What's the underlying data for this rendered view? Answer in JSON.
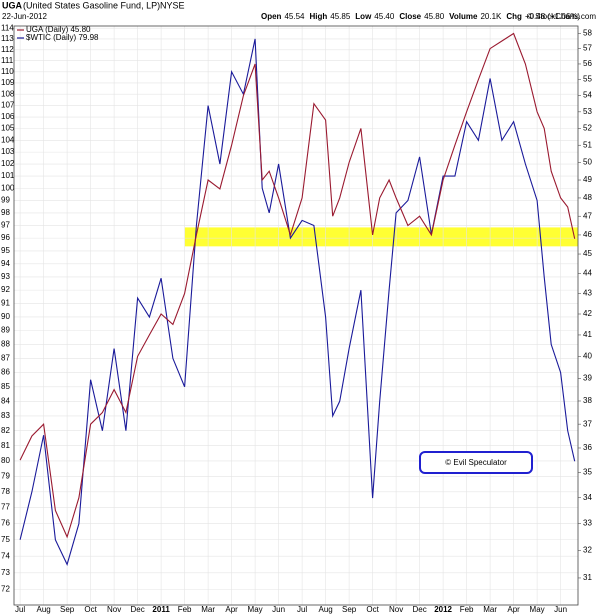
{
  "chart_data": {
    "type": "line",
    "symbol": "UGA",
    "title": "(United States Gasoline Fund, LP)",
    "exchange": "NYSE",
    "date": "22-Jun-2012",
    "quote": [
      [
        "Open",
        "45.54"
      ],
      [
        "High",
        "45.85"
      ],
      [
        "Low",
        "45.40"
      ],
      [
        "Close",
        "45.80"
      ],
      [
        "Volume",
        "20.1K"
      ],
      [
        "Chg",
        "+0.48 (+1.06%)"
      ]
    ],
    "credit": "© StockCharts.com",
    "annotation": "© Evil Speculator",
    "log_scale": true,
    "grid": true,
    "legend": "top-left",
    "highlight": {
      "axis": "y2",
      "range": [
        45.4,
        46.4
      ],
      "x": [
        7.0,
        23.74
      ],
      "color": "#ffff33"
    },
    "x": [
      0,
      0.5,
      1,
      1.5,
      2,
      2.5,
      3,
      3.5,
      4,
      4.5,
      5,
      5.5,
      6,
      6.5,
      7,
      7.5,
      8,
      8.5,
      9,
      9.5,
      10,
      10.3,
      10.6,
      11,
      11.5,
      12,
      12.5,
      13,
      13.3,
      13.6,
      14,
      14.5,
      15,
      15.3,
      15.7,
      16,
      16.5,
      17,
      17.5,
      18,
      18.5,
      19,
      19.5,
      20,
      20.5,
      21,
      21.5,
      22,
      22.3,
      22.6,
      23,
      23.3,
      23.6
    ],
    "xlim": [
      -0.26,
      23.74
    ],
    "xticks": [
      {
        "value": 0,
        "label": "Jul"
      },
      {
        "value": 1,
        "label": "Aug"
      },
      {
        "value": 2,
        "label": "Sep"
      },
      {
        "value": 3,
        "label": "Oct"
      },
      {
        "value": 4,
        "label": "Nov"
      },
      {
        "value": 5,
        "label": "Dec"
      },
      {
        "value": 6,
        "label": "2011"
      },
      {
        "value": 7,
        "label": "Feb"
      },
      {
        "value": 8,
        "label": "Mar"
      },
      {
        "value": 9,
        "label": "Apr"
      },
      {
        "value": 10,
        "label": "May"
      },
      {
        "value": 11,
        "label": "Jun"
      },
      {
        "value": 12,
        "label": "Jul"
      },
      {
        "value": 13,
        "label": "Aug"
      },
      {
        "value": 14,
        "label": "Sep"
      },
      {
        "value": 15,
        "label": "Oct"
      },
      {
        "value": 16,
        "label": "Nov"
      },
      {
        "value": 17,
        "label": "Dec"
      },
      {
        "value": 18,
        "label": "2012"
      },
      {
        "value": 19,
        "label": "Feb"
      },
      {
        "value": 20,
        "label": "Mar"
      },
      {
        "value": 21,
        "label": "Apr"
      },
      {
        "value": 22,
        "label": "May"
      },
      {
        "value": 23,
        "label": "Jun"
      }
    ],
    "ylim": [
      71.1,
      114.2
    ],
    "yticks": [
      72,
      73,
      74,
      75,
      76,
      77,
      78,
      79,
      80,
      81,
      82,
      83,
      84,
      85,
      86,
      87,
      88,
      89,
      90,
      91,
      92,
      93,
      94,
      95,
      96,
      97,
      98,
      99,
      100,
      101,
      102,
      103,
      104,
      105,
      106,
      107,
      108,
      109,
      110,
      111,
      112,
      113,
      114
    ],
    "y2lim": [
      30.05,
      58.5
    ],
    "y2ticks": [
      31,
      32,
      33,
      34,
      35,
      36,
      37,
      38,
      39,
      40,
      41,
      42,
      43,
      44,
      45,
      46,
      47,
      48,
      49,
      50,
      51,
      52,
      53,
      54,
      55,
      56,
      57,
      58
    ],
    "series": [
      {
        "name": "$WTIC (Daily) 79.98",
        "color": "#1a1a9a",
        "axis": "y",
        "values": [
          75,
          78,
          81.7,
          75,
          73.5,
          76,
          85.5,
          82,
          87.7,
          82,
          91.4,
          90,
          92.9,
          87,
          85,
          97,
          107,
          102,
          110,
          108,
          113,
          100,
          98,
          102,
          96,
          97.4,
          97,
          90,
          83,
          84,
          87.7,
          92,
          77.6,
          84,
          92,
          98,
          99,
          102.6,
          96.3,
          101,
          101,
          105.6,
          104,
          109.4,
          104,
          105.6,
          102,
          99,
          93,
          88,
          86,
          82,
          79.98
        ]
      },
      {
        "name": "UGA (Daily) 45.80",
        "color": "#9a1a30",
        "axis": "y2",
        "values": [
          35.5,
          36.5,
          37,
          33.5,
          32.5,
          34,
          37,
          37.5,
          38.5,
          37.5,
          40,
          41,
          42,
          41.5,
          43,
          46,
          49,
          48.5,
          51,
          54,
          56,
          49,
          49.5,
          48,
          46,
          48,
          53.5,
          52.5,
          47,
          48,
          50,
          52,
          46,
          48,
          49,
          48,
          46.5,
          47,
          46,
          49,
          51,
          53,
          55,
          57,
          57.5,
          58,
          56,
          53,
          52,
          49.5,
          48,
          47.5,
          45.8
        ]
      }
    ]
  }
}
